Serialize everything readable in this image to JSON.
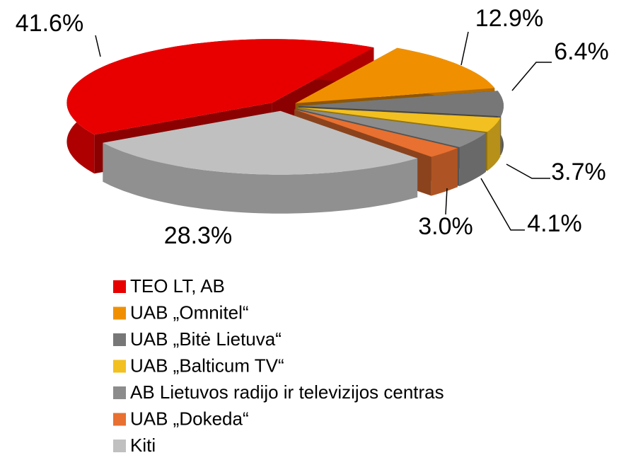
{
  "chart_data": {
    "type": "pie",
    "categories": [
      "TEO LT, AB",
      "UAB „Omnitel“",
      "UAB „Bitė Lietuva“",
      "UAB „Balticum TV“",
      "AB Lietuvos radijo ir televizijos centras",
      "UAB „Dokeda“",
      "Kiti"
    ],
    "values": [
      41.6,
      12.9,
      6.4,
      3.7,
      4.1,
      3.0,
      28.3
    ],
    "value_labels": [
      "41.6%",
      "12.9%",
      "6.4%",
      "3.7%",
      "4.1%",
      "3.0%",
      "28.3%"
    ],
    "colors": [
      "#e80000",
      "#f09000",
      "#777777",
      "#f2c020",
      "#8c8c8c",
      "#e87030",
      "#c0c0c0"
    ]
  }
}
